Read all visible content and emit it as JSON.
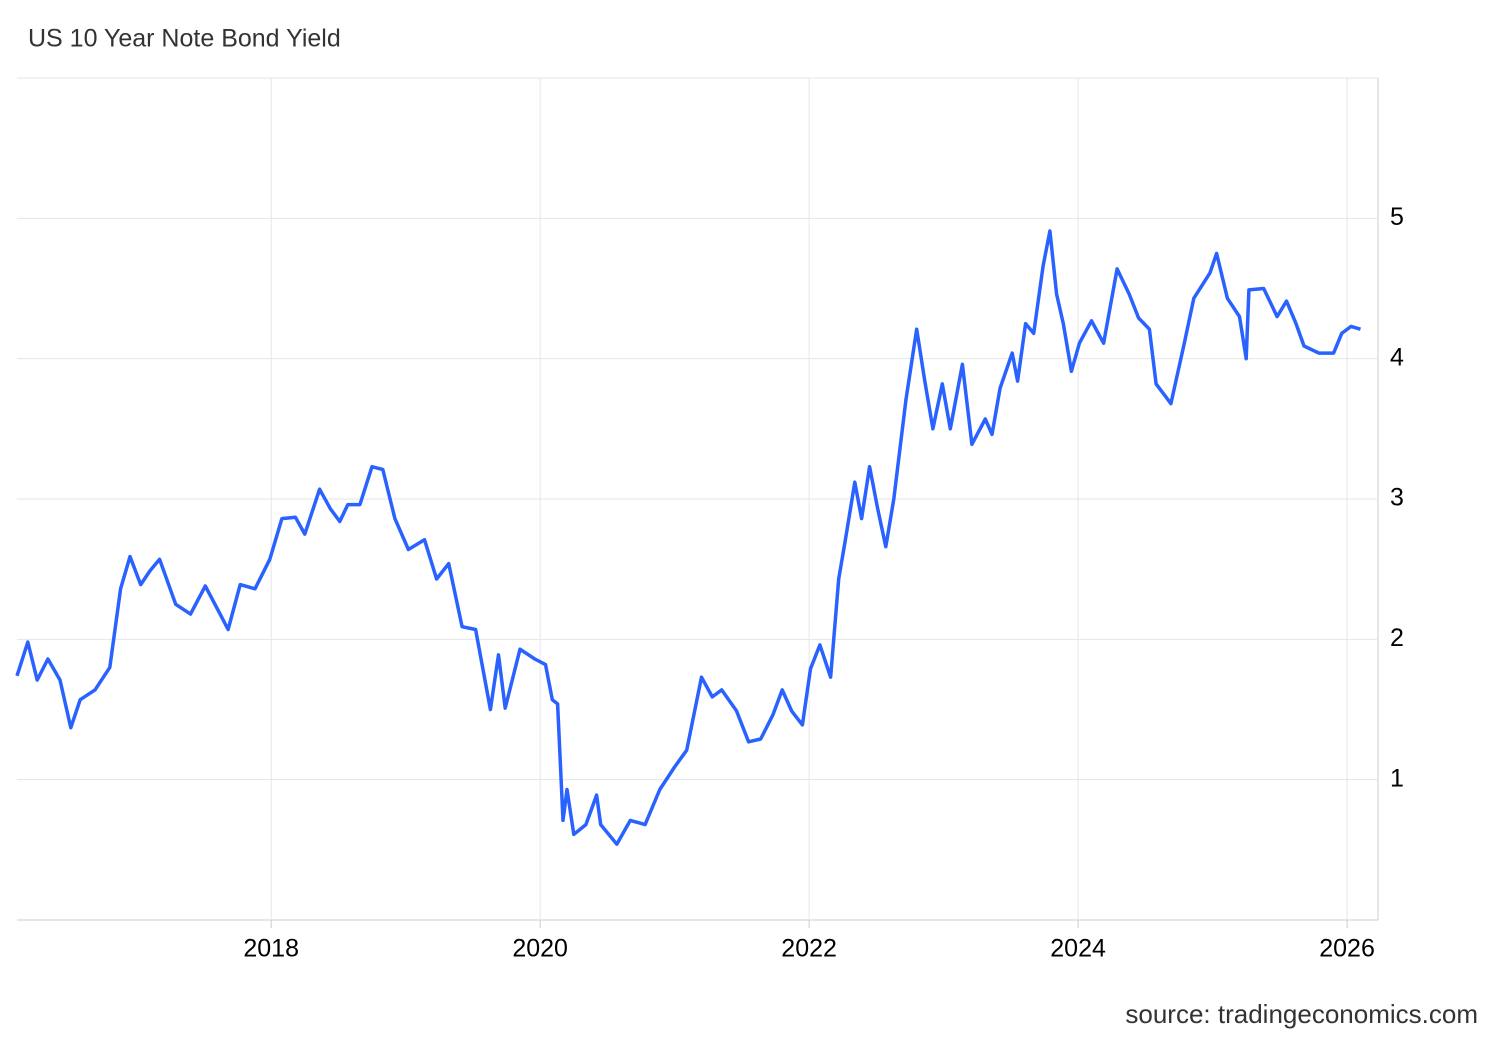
{
  "chart_data": {
    "type": "line",
    "title": "US 10 Year Note Bond Yield",
    "source": "source: tradingeconomics.com",
    "x": [
      2016.11,
      2016.19,
      2016.26,
      2016.34,
      2016.43,
      2016.51,
      2016.58,
      2016.69,
      2016.8,
      2016.88,
      2016.95,
      2017.03,
      2017.1,
      2017.17,
      2017.29,
      2017.4,
      2017.51,
      2017.62,
      2017.68,
      2017.77,
      2017.88,
      2017.99,
      2018.08,
      2018.18,
      2018.25,
      2018.36,
      2018.44,
      2018.51,
      2018.57,
      2018.66,
      2018.75,
      2018.83,
      2018.92,
      2019.02,
      2019.14,
      2019.23,
      2019.32,
      2019.42,
      2019.52,
      2019.63,
      2019.69,
      2019.74,
      2019.85,
      2019.96,
      2020.04,
      2020.09,
      2020.13,
      2020.17,
      2020.2,
      2020.25,
      2020.34,
      2020.42,
      2020.45,
      2020.57,
      2020.67,
      2020.78,
      2020.89,
      2021.0,
      2021.09,
      2021.2,
      2021.28,
      2021.35,
      2021.46,
      2021.55,
      2021.64,
      2021.73,
      2021.8,
      2021.87,
      2021.95,
      2022.01,
      2022.08,
      2022.16,
      2022.22,
      2022.27,
      2022.34,
      2022.39,
      2022.45,
      2022.51,
      2022.57,
      2022.63,
      2022.72,
      2022.8,
      2022.86,
      2022.92,
      2022.99,
      2023.05,
      2023.14,
      2023.21,
      2023.31,
      2023.36,
      2023.42,
      2023.51,
      2023.55,
      2023.61,
      2023.67,
      2023.74,
      2023.79,
      2023.84,
      2023.89,
      2023.95,
      2024.01,
      2024.1,
      2024.19,
      2024.29,
      2024.38,
      2024.45,
      2024.53,
      2024.58,
      2024.69,
      2024.79,
      2024.86,
      2024.98,
      2025.03,
      2025.11,
      2025.2,
      2025.25,
      2025.27,
      2025.38,
      2025.48,
      2025.55,
      2025.62,
      2025.68,
      2025.79,
      2025.9,
      2025.96,
      2026.03,
      2026.1
    ],
    "series": [
      {
        "color": "#2962ff",
        "values": [
          1.74,
          1.98,
          1.71,
          1.86,
          1.71,
          1.37,
          1.57,
          1.64,
          1.8,
          2.36,
          2.59,
          2.39,
          2.49,
          2.57,
          2.25,
          2.18,
          2.38,
          2.18,
          2.07,
          2.39,
          2.36,
          2.57,
          2.86,
          2.87,
          2.75,
          3.07,
          2.93,
          2.84,
          2.96,
          2.96,
          3.23,
          3.21,
          2.86,
          2.64,
          2.71,
          2.43,
          2.54,
          2.09,
          2.07,
          1.5,
          1.89,
          1.51,
          1.93,
          1.86,
          1.82,
          1.57,
          1.54,
          0.71,
          0.93,
          0.61,
          0.68,
          0.89,
          0.68,
          0.54,
          0.71,
          0.68,
          0.93,
          1.09,
          1.21,
          1.73,
          1.59,
          1.64,
          1.49,
          1.27,
          1.29,
          1.46,
          1.64,
          1.49,
          1.39,
          1.79,
          1.96,
          1.73,
          2.43,
          2.71,
          3.12,
          2.86,
          3.23,
          2.93,
          2.66,
          3.0,
          3.71,
          4.21,
          3.84,
          3.5,
          3.82,
          3.5,
          3.96,
          3.39,
          3.57,
          3.46,
          3.79,
          4.04,
          3.84,
          4.25,
          4.18,
          4.66,
          4.91,
          4.46,
          4.25,
          3.91,
          4.11,
          4.27,
          4.11,
          4.64,
          4.46,
          4.29,
          4.21,
          3.82,
          3.68,
          4.11,
          4.43,
          4.61,
          4.75,
          4.43,
          4.3,
          4.0,
          4.49,
          4.5,
          4.3,
          4.41,
          4.25,
          4.09,
          4.04,
          4.04,
          4.18,
          4.23,
          4.21
        ]
      }
    ],
    "xlim": [
      2016.11,
      2026.23
    ],
    "xticks": [
      2018,
      2020,
      2022,
      2024,
      2026
    ],
    "ylim": [
      0,
      6
    ],
    "yticks": [
      1,
      2,
      3,
      4,
      5
    ],
    "grid": true
  }
}
